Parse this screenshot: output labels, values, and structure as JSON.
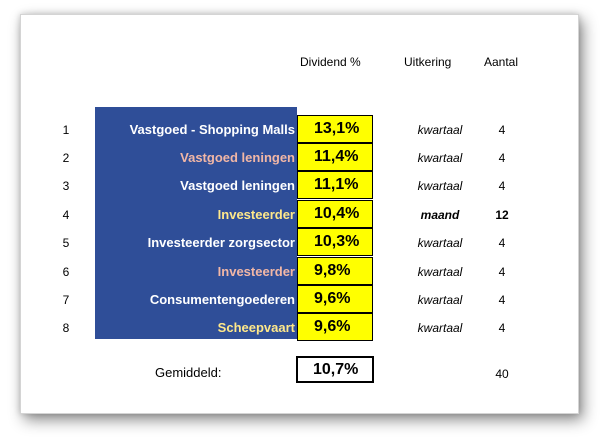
{
  "headers": {
    "dividend": "Dividend %",
    "payout": "Uitkering",
    "count": "Aantal"
  },
  "colors": {
    "panel_blue": "#2f4e98",
    "name_white": "#ffffff",
    "name_pink": "#f2b7a6",
    "name_yellow": "#ffe88a",
    "pct_yellow": "#ffff00"
  },
  "rows": [
    {
      "rank": "1",
      "name": "Vastgoed - Shopping Malls",
      "name_color": "white",
      "pct": "13,1%",
      "payout": "kwartaal",
      "count": "4"
    },
    {
      "rank": "2",
      "name": "Vastgoed leningen",
      "name_color": "pink",
      "pct": "11,4%",
      "payout": "kwartaal",
      "count": "4"
    },
    {
      "rank": "3",
      "name": "Vastgoed leningen",
      "name_color": "white",
      "pct": "11,1%",
      "payout": "kwartaal",
      "count": "4"
    },
    {
      "rank": "4",
      "name": "Investeerder",
      "name_color": "yellow",
      "pct": "10,4%",
      "payout": "maand",
      "count": "12"
    },
    {
      "rank": "5",
      "name": "Investeerder zorgsector",
      "name_color": "white",
      "pct": "10,3%",
      "payout": "kwartaal",
      "count": "4"
    },
    {
      "rank": "6",
      "name": "Investeerder",
      "name_color": "pink",
      "pct": "9,8%",
      "payout": "kwartaal",
      "count": "4"
    },
    {
      "rank": "7",
      "name": "Consumentengoederen",
      "name_color": "white",
      "pct": "9,6%",
      "payout": "kwartaal",
      "count": "4"
    },
    {
      "rank": "8",
      "name": "Scheepvaart",
      "name_color": "yellow",
      "pct": "9,6%",
      "payout": "kwartaal",
      "count": "4"
    }
  ],
  "summary": {
    "label": "Gemiddeld:",
    "pct": "10,7%",
    "count": "40"
  }
}
